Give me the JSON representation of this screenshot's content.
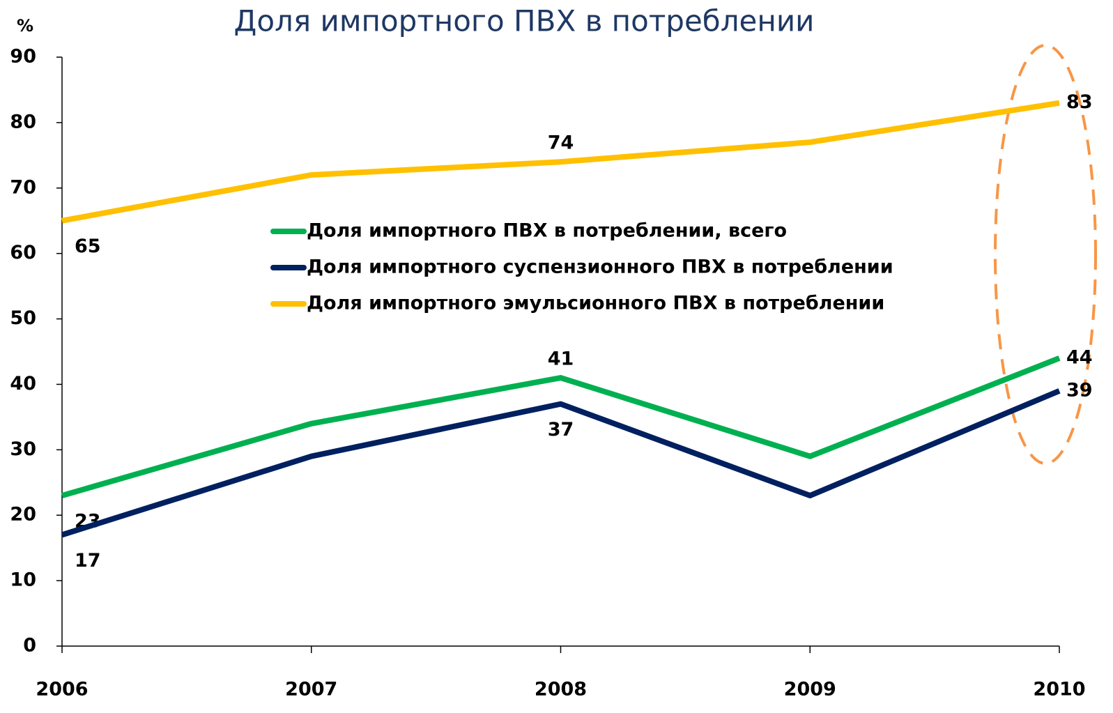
{
  "chart_data": {
    "type": "line",
    "title": "Доля импортного ПВХ в потреблении",
    "y_label": "%",
    "categories": [
      "2006",
      "2007",
      "2008",
      "2009",
      "2010"
    ],
    "series": [
      {
        "name": "Доля импортного ПВХ в потреблении, всего",
        "color": "#00b050",
        "values": [
          23,
          34,
          41,
          29,
          44
        ]
      },
      {
        "name": "Доля импортного суспензионного ПВХ в потреблении",
        "color": "#002060",
        "values": [
          17,
          29,
          37,
          23,
          39
        ]
      },
      {
        "name": "Доля импортного эмульсионного ПВХ в потреблении",
        "color": "#ffc000",
        "values": [
          65,
          72,
          74,
          77,
          83
        ]
      }
    ],
    "data_labels_at": [
      0,
      2,
      4
    ],
    "ylim": [
      0,
      90
    ],
    "yticks": [
      0,
      10,
      20,
      30,
      40,
      50,
      60,
      70,
      80,
      90
    ],
    "grid": false
  }
}
